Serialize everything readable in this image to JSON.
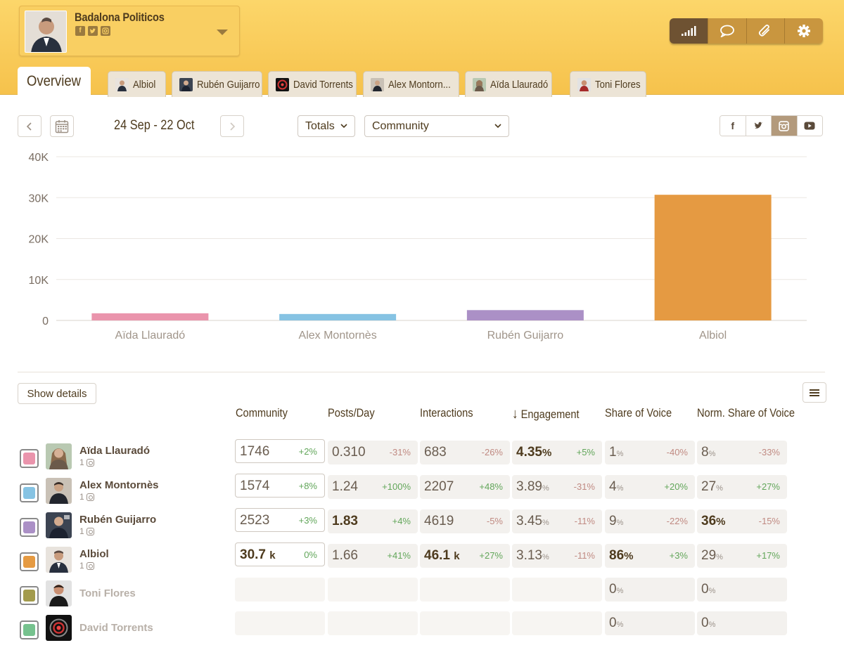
{
  "account": {
    "name": "Badalona Politicos",
    "socials": [
      "facebook-icon",
      "twitter-icon",
      "instagram-icon"
    ]
  },
  "toolbar": [
    "stats-icon",
    "comment-icon",
    "clip-icon",
    "gear-icon"
  ],
  "tabs": [
    "Overview",
    "Albiol",
    "Rubén Guijarro",
    "David Torrents",
    "Alex Montorn...",
    "Aïda Llauradó",
    "Toni Flores"
  ],
  "controls": {
    "date_range": "24 Sep - 22 Oct",
    "aggregate": "Totals",
    "metric": "Community",
    "networks": [
      "f",
      "twitter",
      "instagram",
      "youtube"
    ],
    "active_network": "instagram"
  },
  "chart_data": {
    "type": "bar",
    "title": "",
    "xlabel": "",
    "ylabel": "",
    "categories": [
      "Aïda Llauradó",
      "Alex Montornès",
      "Rubén Guijarro",
      "Albiol"
    ],
    "values": [
      1746,
      1574,
      2523,
      30700
    ],
    "colors": [
      "#ea94ac",
      "#86c3e3",
      "#ab90c6",
      "#e59a42"
    ],
    "ylim": [
      0,
      40000
    ],
    "yticks": [
      0,
      10000,
      20000,
      30000,
      40000
    ],
    "ytick_labels": [
      "0",
      "10K",
      "20K",
      "30K",
      "40K"
    ],
    "grid": true
  },
  "table": {
    "show_details": "Show details",
    "columns": [
      "Community",
      "Posts/Day",
      "Interactions",
      "Engagement",
      "Share of Voice",
      "Norm. Share of Voice"
    ],
    "sort_arrow": "↓",
    "rows": [
      {
        "name": "Aïda Llauradó",
        "color": "#ea94ac",
        "accounts": "1",
        "community": "1746",
        "community_d": "+2%",
        "posts": "0.310",
        "posts_d": "-31%",
        "interactions": "683",
        "interactions_d": "-26%",
        "engagement": "4.35",
        "engagement_u": "%",
        "engagement_d": "+5%",
        "sov": "1",
        "sov_u": "%",
        "sov_d": "-40%",
        "nsov": "8",
        "nsov_u": "%",
        "nsov_d": "-33%"
      },
      {
        "name": "Alex Montornès",
        "color": "#86c3e3",
        "accounts": "1",
        "community": "1574",
        "community_d": "+8%",
        "posts": "1.24",
        "posts_d": "+100%",
        "interactions": "2207",
        "interactions_d": "+48%",
        "engagement": "3.89",
        "engagement_u": "%",
        "engagement_d": "-31%",
        "sov": "4",
        "sov_u": "%",
        "sov_d": "+20%",
        "nsov": "27",
        "nsov_u": "%",
        "nsov_d": "+27%"
      },
      {
        "name": "Rubén Guijarro",
        "color": "#ab90c6",
        "accounts": "1",
        "community": "2523",
        "community_d": "+3%",
        "posts": "1.83",
        "posts_d": "+4%",
        "interactions": "4619",
        "interactions_d": "-5%",
        "engagement": "3.45",
        "engagement_u": "%",
        "engagement_d": "-11%",
        "sov": "9",
        "sov_u": "%",
        "sov_d": "-22%",
        "nsov": "36",
        "nsov_u": "%",
        "nsov_d": "-15%"
      },
      {
        "name": "Albiol",
        "color": "#e59a42",
        "accounts": "1",
        "community": "30.7",
        "community_u": "k",
        "community_d": "0%",
        "posts": "1.66",
        "posts_d": "+41%",
        "interactions": "46.1",
        "interactions_u": "k",
        "interactions_d": "+27%",
        "engagement": "3.13",
        "engagement_u": "%",
        "engagement_d": "-11%",
        "sov": "86",
        "sov_u": "%",
        "sov_d": "+3%",
        "nsov": "29",
        "nsov_u": "%",
        "nsov_d": "+17%"
      },
      {
        "name": "Toni Flores",
        "color": "#a39b4c",
        "sov": "0",
        "sov_u": "%",
        "nsov": "0",
        "nsov_u": "%"
      },
      {
        "name": "David Torrents",
        "color": "#76c28e",
        "sov": "0",
        "sov_u": "%",
        "nsov": "0",
        "nsov_u": "%"
      }
    ]
  }
}
